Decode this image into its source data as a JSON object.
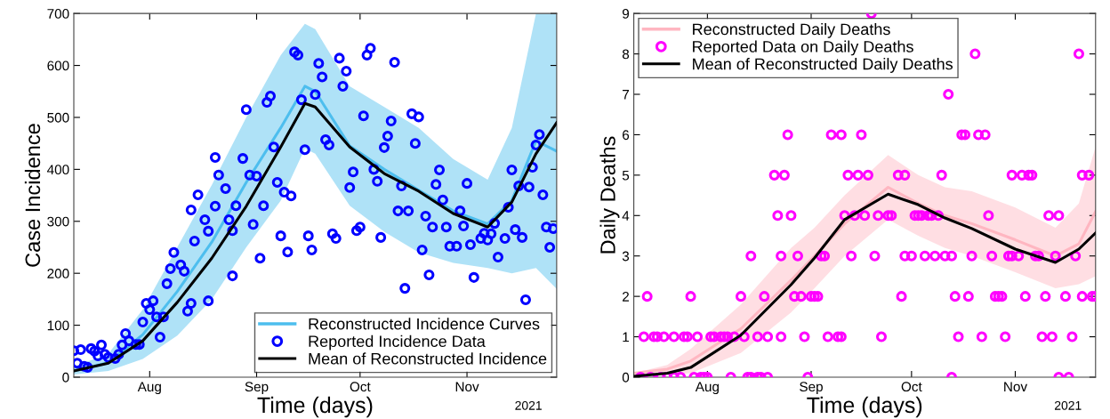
{
  "chart_data": [
    {
      "type": "scatter",
      "xlabel": "Time (days)",
      "ylabel": "Case Incidence",
      "annotations": [
        "2021"
      ],
      "xlim": [
        "2021-07-10",
        "2021-11-27"
      ],
      "ylim": [
        0,
        700
      ],
      "yticks": [
        0,
        100,
        200,
        300,
        400,
        500,
        600,
        700
      ],
      "xticks": [
        {
          "value": "2021-08-01",
          "label": "Aug"
        },
        {
          "value": "2021-09-01",
          "label": "Sep"
        },
        {
          "value": "2021-10-01",
          "label": "Oct"
        },
        {
          "value": "2021-11-01",
          "label": "Nov"
        }
      ],
      "grid": false,
      "legend": "bottom right",
      "series": [
        {
          "name": "Reconstructed Incidence Curves",
          "type": "line",
          "marker": "none",
          "line_style": "solid",
          "color": "#4dbeee",
          "x": [
            "2021-07-10",
            "2021-07-20",
            "2021-07-30",
            "2021-08-09",
            "2021-08-19",
            "2021-08-29",
            "2021-09-08",
            "2021-09-15",
            "2021-09-18",
            "2021-09-28",
            "2021-10-08",
            "2021-10-18",
            "2021-10-28",
            "2021-11-07",
            "2021-11-14",
            "2021-11-21",
            "2021-11-27"
          ],
          "lower": [
            5,
            12,
            35,
            80,
            150,
            250,
            340,
            440,
            430,
            330,
            280,
            240,
            220,
            210,
            200,
            210,
            170
          ],
          "upper": [
            20,
            45,
            130,
            250,
            370,
            500,
            620,
            680,
            670,
            560,
            520,
            480,
            420,
            380,
            480,
            700,
            700
          ],
          "values": [
            12,
            28,
            82,
            165,
            260,
            375,
            480,
            560,
            550,
            445,
            400,
            360,
            320,
            295,
            340,
            455,
            435
          ]
        },
        {
          "name": "Reported Incidence Data",
          "marker": "circle",
          "color": "#0000ff",
          "x": [
            "2021-07-10",
            "2021-07-12",
            "2021-07-15",
            "2021-07-18",
            "2021-07-16",
            "2021-07-17",
            "2021-07-19",
            "2021-07-20",
            "2021-07-22",
            "2021-07-23",
            "2021-07-24",
            "2021-07-25",
            "2021-07-26",
            "2021-07-28",
            "2021-07-29",
            "2021-07-11",
            "2021-07-13",
            "2021-07-14",
            "2021-08-04",
            "2021-07-30",
            "2021-07-31",
            "2021-08-01",
            "2021-08-02",
            "2021-08-03",
            "2021-08-05",
            "2021-08-06",
            "2021-08-07",
            "2021-08-10",
            "2021-08-11",
            "2021-08-08",
            "2021-08-12",
            "2021-08-13",
            "2021-08-18",
            "2021-08-14",
            "2021-08-13",
            "2021-08-15",
            "2021-08-17",
            "2021-08-18",
            "2021-08-20",
            "2021-08-20",
            "2021-08-21",
            "2021-08-23",
            "2021-08-24",
            "2021-08-25",
            "2021-08-25",
            "2021-08-26",
            "2021-08-28",
            "2021-08-30",
            "2021-09-01",
            "2021-08-31",
            "2021-09-02",
            "2021-09-03",
            "2021-09-04",
            "2021-09-05",
            "2021-09-06",
            "2021-08-29",
            "2021-09-07",
            "2021-09-08",
            "2021-09-09",
            "2021-09-11",
            "2021-09-10",
            "2021-09-12",
            "2021-09-13",
            "2021-09-14",
            "2021-09-15",
            "2021-09-16",
            "2021-09-17",
            "2021-09-18",
            "2021-09-19",
            "2021-09-20",
            "2021-09-21",
            "2021-09-22",
            "2021-09-23",
            "2021-09-24",
            "2021-09-25",
            "2021-09-26",
            "2021-09-27",
            "2021-09-28",
            "2021-09-29",
            "2021-09-30",
            "2021-10-01",
            "2021-10-02",
            "2021-10-03",
            "2021-10-04",
            "2021-10-05",
            "2021-10-06",
            "2021-10-07",
            "2021-10-08",
            "2021-10-09",
            "2021-10-10",
            "2021-10-11",
            "2021-10-12",
            "2021-10-13",
            "2021-10-14",
            "2021-10-15",
            "2021-10-16",
            "2021-10-17",
            "2021-10-18",
            "2021-10-19",
            "2021-10-20",
            "2021-10-21",
            "2021-10-22",
            "2021-10-23",
            "2021-10-24",
            "2021-10-25",
            "2021-10-26",
            "2021-10-27",
            "2021-10-29",
            "2021-10-30",
            "2021-10-31",
            "2021-11-01",
            "2021-11-02",
            "2021-11-03",
            "2021-11-05",
            "2021-11-06",
            "2021-11-07",
            "2021-11-08",
            "2021-11-09",
            "2021-11-10",
            "2021-11-12",
            "2021-11-13",
            "2021-11-14",
            "2021-11-15",
            "2021-11-16",
            "2021-11-17",
            "2021-11-18",
            "2021-11-19",
            "2021-11-20",
            "2021-11-21",
            "2021-11-22",
            "2021-11-23",
            "2021-11-24",
            "2021-11-25",
            "2021-11-26"
          ],
          "values": [
            51,
            53,
            55,
            62,
            50,
            41,
            44,
            38,
            36,
            44,
            62,
            84,
            70,
            63,
            63,
            27,
            21,
            19,
            77,
            106,
            142,
            130,
            147,
            116,
            116,
            180,
            209,
            216,
            204,
            240,
            127,
            142,
            147,
            262,
            322,
            351,
            303,
            281,
            329,
            423,
            389,
            363,
            303,
            282,
            195,
            330,
            421,
            389,
            387,
            294,
            229,
            330,
            529,
            541,
            443,
            515,
            375,
            272,
            356,
            349,
            241,
            626,
            620,
            534,
            438,
            272,
            245,
            544,
            604,
            578,
            457,
            447,
            276,
            267,
            614,
            560,
            589,
            365,
            395,
            282,
            289,
            503,
            620,
            633,
            400,
            377,
            269,
            442,
            464,
            493,
            606,
            320,
            368,
            171,
            320,
            507,
            450,
            501,
            245,
            310,
            197,
            289,
            371,
            399,
            341,
            289,
            252,
            252,
            320,
            291,
            373,
            255,
            192,
            267,
            277,
            264,
            276,
            296,
            231,
            267,
            327,
            399,
            284,
            368,
            269,
            149,
            366,
            404,
            447,
            467,
            351,
            289,
            250,
            286
          ]
        },
        {
          "name": "Mean of Reconstructed Incidence",
          "type": "line",
          "marker": "none",
          "line_style": "solid",
          "color": "#000000",
          "x": [
            "2021-07-10",
            "2021-07-20",
            "2021-07-30",
            "2021-08-09",
            "2021-08-19",
            "2021-08-29",
            "2021-09-08",
            "2021-09-15",
            "2021-09-18",
            "2021-09-28",
            "2021-10-08",
            "2021-10-18",
            "2021-10-28",
            "2021-11-07",
            "2021-11-14",
            "2021-11-21",
            "2021-11-27"
          ],
          "values": [
            12,
            27,
            70,
            144,
            229,
            329,
            443,
            527,
            520,
            443,
            392,
            358,
            315,
            289,
            337,
            430,
            490
          ]
        }
      ]
    },
    {
      "type": "scatter",
      "xlabel": "Time (days)",
      "ylabel": "Daily Deaths",
      "annotations": [
        "2021"
      ],
      "xlim": [
        "2021-07-10",
        "2021-11-25"
      ],
      "ylim": [
        0,
        9
      ],
      "yticks": [
        0,
        1,
        2,
        3,
        4,
        5,
        6,
        7,
        8,
        9
      ],
      "xticks": [
        {
          "value": "2021-08-01",
          "label": "Aug"
        },
        {
          "value": "2021-09-01",
          "label": "Sep"
        },
        {
          "value": "2021-10-01",
          "label": "Oct"
        },
        {
          "value": "2021-11-01",
          "label": "Nov"
        }
      ],
      "grid": false,
      "legend": "top left",
      "series": [
        {
          "name": "Reconstructed Daily Deaths",
          "type": "line",
          "marker": "none",
          "line_style": "solid",
          "color": "#ffb6c1",
          "x": [
            "2021-07-10",
            "2021-07-20",
            "2021-07-27",
            "2021-08-11",
            "2021-08-26",
            "2021-09-02",
            "2021-09-11",
            "2021-09-24",
            "2021-10-03",
            "2021-10-11",
            "2021-10-19",
            "2021-11-01",
            "2021-11-13",
            "2021-11-20",
            "2021-11-25"
          ],
          "lower": [
            0,
            0.05,
            0.1,
            0.6,
            1.6,
            2.2,
            3.0,
            3.9,
            3.5,
            3.2,
            3.0,
            2.6,
            2.2,
            2.3,
            2.5
          ],
          "upper": [
            0.1,
            0.3,
            0.7,
            1.8,
            3.2,
            3.7,
            4.5,
            5.5,
            5.0,
            4.7,
            4.6,
            4.2,
            3.7,
            4.3,
            5.7
          ],
          "values": [
            0.1,
            0.2,
            0.4,
            1.2,
            2.4,
            3.0,
            3.8,
            4.7,
            4.3,
            4.0,
            3.8,
            3.4,
            3.0,
            3.3,
            4.1
          ]
        },
        {
          "name": "Reported Data on Daily Deaths",
          "marker": "circle",
          "color": "#ff00ff",
          "x": [
            "2021-07-12",
            "2021-07-15",
            "2021-07-18",
            "2021-07-20",
            "2021-07-22",
            "2021-07-24",
            "2021-07-28",
            "2021-07-30",
            "2021-07-31",
            "2021-08-01",
            "2021-08-08",
            "2021-08-13",
            "2021-08-14",
            "2021-08-16",
            "2021-08-17",
            "2021-08-19",
            "2021-08-31",
            "2021-10-13",
            "2021-11-14",
            "2021-11-17",
            "2021-07-13",
            "2021-07-16",
            "2021-07-17",
            "2021-07-19",
            "2021-07-22",
            "2021-07-25",
            "2021-07-26",
            "2021-07-29",
            "2021-08-02",
            "2021-08-03",
            "2021-08-05",
            "2021-08-06",
            "2021-08-07",
            "2021-08-09",
            "2021-08-12",
            "2021-08-16",
            "2021-08-19",
            "2021-08-23",
            "2021-08-30",
            "2021-09-06",
            "2021-09-09",
            "2021-09-10",
            "2021-09-22",
            "2021-10-15",
            "2021-10-22",
            "2021-10-29",
            "2021-11-09",
            "2021-11-12",
            "2021-11-18",
            "2021-07-14",
            "2021-07-27",
            "2021-08-11",
            "2021-08-18",
            "2021-08-27",
            "2021-08-29",
            "2021-09-01",
            "2021-09-02",
            "2021-09-03",
            "2021-09-28",
            "2021-10-14",
            "2021-10-18",
            "2021-10-26",
            "2021-10-27",
            "2021-10-28",
            "2021-11-04",
            "2021-11-10",
            "2021-11-16",
            "2021-11-21",
            "2021-11-24",
            "2021-11-25",
            "2021-08-14",
            "2021-08-23",
            "2021-08-28",
            "2021-09-04",
            "2021-09-05",
            "2021-09-13",
            "2021-09-20",
            "2021-09-29",
            "2021-10-01",
            "2021-10-05",
            "2021-10-08",
            "2021-10-11",
            "2021-10-13",
            "2021-10-19",
            "2021-10-25",
            "2021-10-30",
            "2021-10-31",
            "2021-11-02",
            "2021-11-07",
            "2021-11-08",
            "2021-11-13",
            "2021-11-19",
            "2021-08-22",
            "2021-08-26",
            "2021-09-11",
            "2021-09-14",
            "2021-09-17",
            "2021-09-21",
            "2021-09-24",
            "2021-09-25",
            "2021-10-02",
            "2021-10-03",
            "2021-10-04",
            "2021-10-06",
            "2021-10-07",
            "2021-10-09",
            "2021-10-24",
            "2021-11-11",
            "2021-11-14",
            "2021-08-21",
            "2021-08-24",
            "2021-09-12",
            "2021-09-15",
            "2021-09-18",
            "2021-09-27",
            "2021-09-29",
            "2021-10-10",
            "2021-10-31",
            "2021-11-03",
            "2021-11-05",
            "2021-11-06",
            "2021-11-21",
            "2021-11-23",
            "2021-08-25",
            "2021-09-07",
            "2021-09-10",
            "2021-09-16",
            "2021-10-16",
            "2021-10-17",
            "2021-10-21",
            "2021-10-23",
            "2021-10-12",
            "2021-10-20",
            "2021-11-20",
            "2021-09-19"
          ],
          "values": [
            0,
            0,
            0,
            0,
            0,
            0,
            0,
            0,
            0,
            0,
            0,
            0,
            0,
            0,
            0,
            0,
            0,
            0,
            0,
            0,
            1,
            1,
            1,
            1,
            1,
            1,
            1,
            1,
            1,
            1,
            1,
            1,
            1,
            1,
            1,
            1,
            1,
            1,
            1,
            1,
            1,
            1,
            1,
            1,
            1,
            1,
            1,
            1,
            1,
            2,
            2,
            2,
            2,
            2,
            2,
            2,
            2,
            2,
            2,
            2,
            2,
            2,
            2,
            2,
            2,
            2,
            2,
            2,
            2,
            2,
            3,
            3,
            3,
            3,
            3,
            3,
            3,
            3,
            3,
            3,
            3,
            3,
            3,
            3,
            3,
            3,
            3,
            3,
            3,
            3,
            3,
            3,
            4,
            4,
            4,
            4,
            4,
            4,
            4,
            4,
            4,
            4,
            4,
            4,
            4,
            4,
            4,
            4,
            4,
            5,
            5,
            5,
            5,
            5,
            5,
            5,
            5,
            5,
            5,
            5,
            5,
            5,
            5,
            6,
            6,
            6,
            6,
            6,
            6,
            6,
            6,
            7,
            8,
            8,
            9
          ]
        },
        {
          "name": "Mean of Reconstructed Daily Deaths",
          "type": "line",
          "marker": "none",
          "line_style": "solid",
          "color": "#000000",
          "x": [
            "2021-07-10",
            "2021-07-20",
            "2021-07-27",
            "2021-08-11",
            "2021-08-26",
            "2021-09-02",
            "2021-09-11",
            "2021-09-24",
            "2021-10-03",
            "2021-10-11",
            "2021-10-19",
            "2021-11-01",
            "2021-11-13",
            "2021-11-20",
            "2021-11-25"
          ],
          "values": [
            0.02,
            0.1,
            0.24,
            1.04,
            2.29,
            2.95,
            3.9,
            4.53,
            4.27,
            3.94,
            3.68,
            3.17,
            2.84,
            3.17,
            3.57
          ]
        }
      ]
    }
  ]
}
